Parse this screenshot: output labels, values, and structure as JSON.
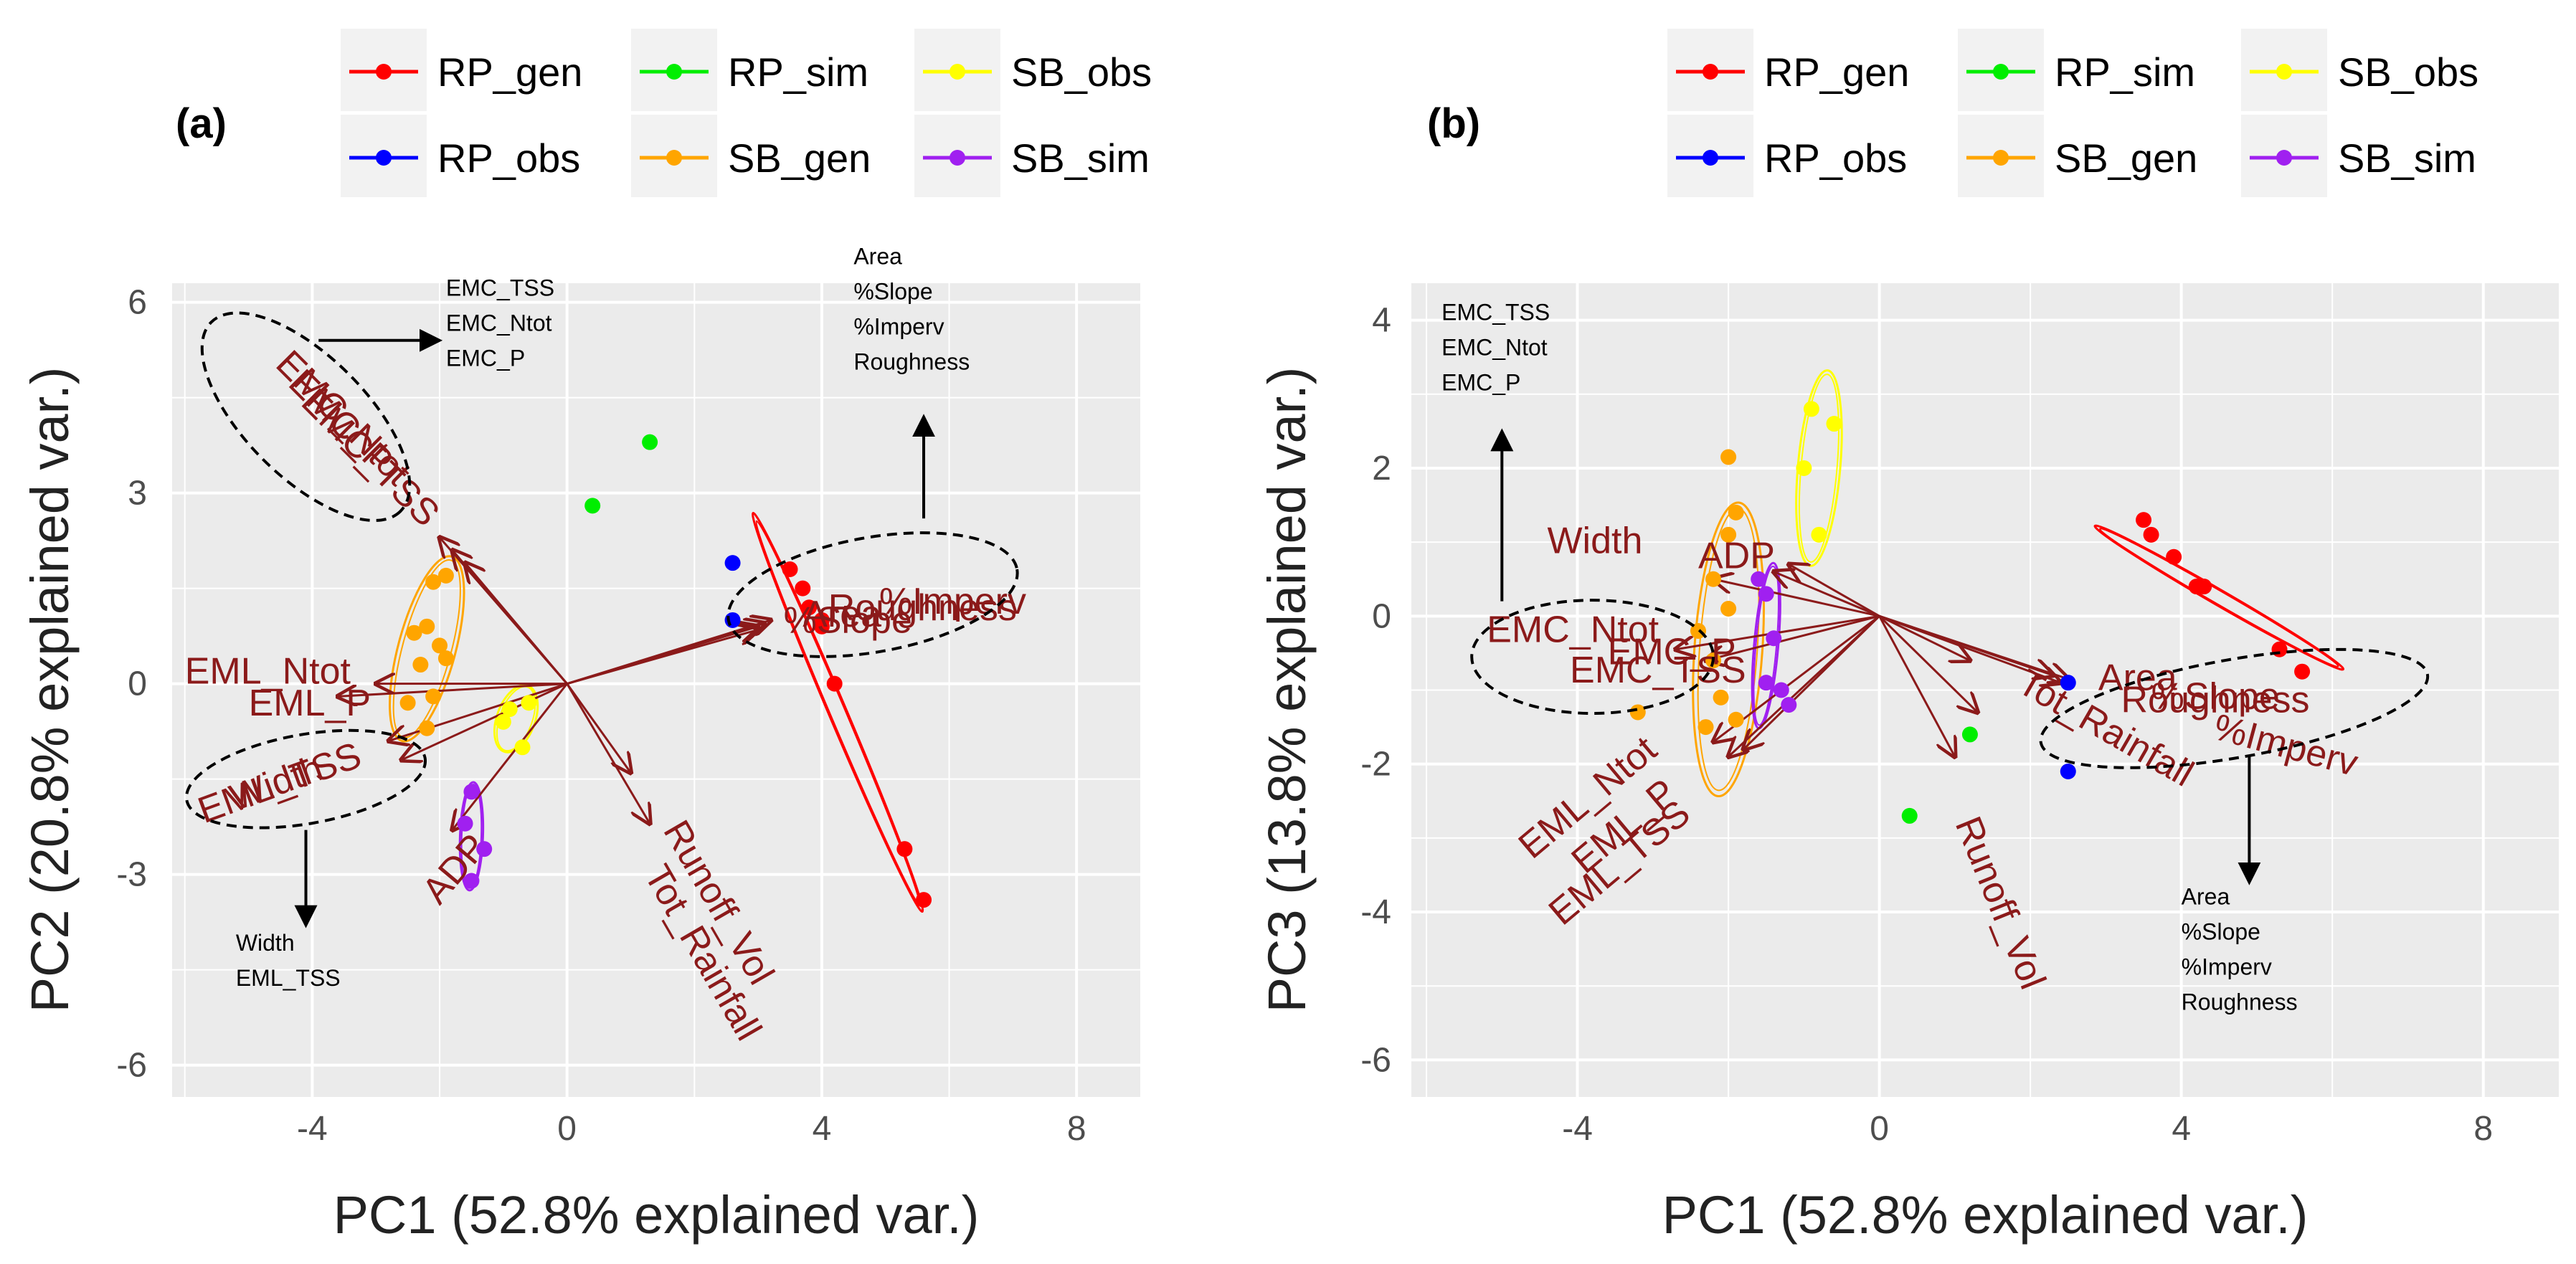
{
  "colors": {
    "RP_gen": "#ff0000",
    "RP_obs": "#0000ff",
    "RP_sim": "#00ee00",
    "SB_gen": "#ffa500",
    "SB_obs": "#ffff00",
    "SB_sim": "#a020f0",
    "loading": "#8b1a1a",
    "panel_bg": "#ebebeb",
    "grid": "#ffffff"
  },
  "chart_data": [
    {
      "type": "scatter",
      "panel_label": "(a)",
      "xlabel": "PC1 (52.8% explained var.)",
      "ylabel": "PC2 (20.8% explained var.)",
      "xlim": [
        -6.2,
        9.0
      ],
      "ylim": [
        -6.5,
        6.3
      ],
      "xticks": [
        -4,
        0,
        4,
        8
      ],
      "xtick_labels": [
        "-4",
        "0",
        "4",
        "8"
      ],
      "yticks": [
        -6,
        -3,
        0,
        3,
        6
      ],
      "ytick_labels": [
        "-6",
        "-3",
        "0",
        "3",
        "6"
      ],
      "legend": [
        {
          "key": "RP_gen",
          "label": "RP_gen"
        },
        {
          "key": "RP_sim",
          "label": "RP_sim"
        },
        {
          "key": "SB_obs",
          "label": "SB_obs"
        },
        {
          "key": "RP_obs",
          "label": "RP_obs"
        },
        {
          "key": "SB_gen",
          "label": "SB_gen"
        },
        {
          "key": "SB_sim",
          "label": "SB_sim"
        }
      ],
      "series": [
        {
          "name": "RP_gen",
          "points": [
            [
              3.5,
              1.8
            ],
            [
              3.7,
              1.5
            ],
            [
              3.8,
              1.2
            ],
            [
              4.0,
              0.9
            ],
            [
              4.2,
              0.0
            ],
            [
              5.3,
              -2.6
            ],
            [
              5.6,
              -3.4
            ],
            [
              4.0,
              1.0
            ]
          ]
        },
        {
          "name": "RP_obs",
          "points": [
            [
              2.6,
              1.9
            ],
            [
              2.6,
              1.0
            ]
          ]
        },
        {
          "name": "RP_sim",
          "points": [
            [
              1.3,
              3.8
            ],
            [
              0.4,
              2.8
            ]
          ]
        },
        {
          "name": "SB_gen",
          "points": [
            [
              -2.1,
              1.6
            ],
            [
              -1.9,
              1.7
            ],
            [
              -2.4,
              0.8
            ],
            [
              -2.2,
              0.9
            ],
            [
              -2.0,
              0.6
            ],
            [
              -2.3,
              0.3
            ],
            [
              -1.9,
              0.4
            ],
            [
              -2.5,
              -0.3
            ],
            [
              -2.1,
              -0.2
            ],
            [
              -2.2,
              -0.7
            ]
          ]
        },
        {
          "name": "SB_obs",
          "points": [
            [
              -0.9,
              -0.4
            ],
            [
              -0.6,
              -0.3
            ],
            [
              -0.7,
              -1.0
            ],
            [
              -1.0,
              -0.6
            ]
          ]
        },
        {
          "name": "SB_sim",
          "points": [
            [
              -1.5,
              -1.7
            ],
            [
              -1.6,
              -2.2
            ],
            [
              -1.3,
              -2.6
            ],
            [
              -1.5,
              -3.1
            ]
          ]
        }
      ],
      "ellipses": [
        {
          "series": "RP_gen",
          "cx": 4.25,
          "cy": -0.45,
          "rx": 3.4,
          "ry": 0.14,
          "angle": -67
        },
        {
          "series": "SB_gen",
          "cx": -2.2,
          "cy": 0.55,
          "rx": 1.5,
          "ry": 0.45,
          "angle": 75
        },
        {
          "series": "SB_obs",
          "cx": -0.8,
          "cy": -0.55,
          "rx": 0.55,
          "ry": 0.3,
          "angle": 70
        },
        {
          "series": "SB_sim",
          "cx": -1.5,
          "cy": -2.4,
          "rx": 0.85,
          "ry": 0.18,
          "angle": 88
        }
      ],
      "loadings": [
        {
          "to": [
            -2.0,
            2.3
          ]
        },
        {
          "to": [
            -1.8,
            2.1
          ]
        },
        {
          "to": [
            -1.6,
            1.9
          ]
        },
        {
          "to": [
            3.0,
            0.9
          ]
        },
        {
          "to": [
            3.1,
            0.95
          ]
        },
        {
          "to": [
            3.0,
            0.85
          ]
        },
        {
          "to": [
            3.2,
            1.0
          ]
        },
        {
          "to": [
            -3.6,
            -0.2
          ]
        },
        {
          "to": [
            -3.0,
            0.0
          ]
        },
        {
          "to": [
            -2.8,
            -0.9
          ]
        },
        {
          "to": [
            -2.6,
            -1.2
          ]
        },
        {
          "to": [
            -1.8,
            -2.3
          ]
        },
        {
          "to": [
            1.3,
            -2.2
          ]
        },
        {
          "to": [
            1.0,
            -1.4
          ]
        }
      ],
      "var_labels": [
        {
          "text": "EMC_Ntot",
          "x": -4.6,
          "y": 5.0,
          "rot": 45
        },
        {
          "text": "EMC_P",
          "x": -4.4,
          "y": 4.7,
          "rot": 45
        },
        {
          "text": "EMC_TSS",
          "x": -4.2,
          "y": 4.4,
          "rot": 45
        },
        {
          "text": "%Slope",
          "x": 3.4,
          "y": 0.8,
          "rot": 0
        },
        {
          "text": "%Imperv",
          "x": 4.9,
          "y": 1.1,
          "rot": 0
        },
        {
          "text": "Roughness",
          "x": 4.1,
          "y": 1.0,
          "rot": 0
        },
        {
          "text": "Area",
          "x": 3.7,
          "y": 0.9,
          "rot": 0
        },
        {
          "text": "EML_Ntot",
          "x": -6.0,
          "y": 0.0,
          "rot": 0
        },
        {
          "text": "EML_P",
          "x": -5.0,
          "y": -0.5,
          "rot": 0
        },
        {
          "text": "EML_TSS",
          "x": -5.7,
          "y": -2.2,
          "rot": -20
        },
        {
          "text": "Width",
          "x": -5.2,
          "y": -2.0,
          "rot": -20
        },
        {
          "text": "ADP",
          "x": -2.0,
          "y": -3.5,
          "rot": -50
        },
        {
          "text": "Runoff_Vol",
          "x": 1.5,
          "y": -2.3,
          "rot": 60
        },
        {
          "text": "Tot_Rainfall",
          "x": 1.2,
          "y": -3.0,
          "rot": 60
        }
      ],
      "dashed_ellipses": [
        {
          "cx": -4.1,
          "cy": 4.2,
          "rx": 2.1,
          "ry": 0.95,
          "angle": -45
        },
        {
          "cx": 4.8,
          "cy": 1.4,
          "rx": 2.3,
          "ry": 0.9,
          "angle": 10
        },
        {
          "cx": -4.1,
          "cy": -1.5,
          "rx": 1.9,
          "ry": 0.7,
          "angle": 10
        }
      ],
      "annotations": [
        {
          "lines": [
            "EMC_TSS",
            "EMC_Ntot",
            "EMC_P"
          ],
          "x": -1.9,
          "y": 6.1,
          "arrow": [
            [
              -3.9,
              5.4
            ],
            [
              -2.0,
              5.4
            ]
          ]
        },
        {
          "lines": [
            "Area",
            "%Slope",
            "%Imperv",
            "Roughness"
          ],
          "x": 4.5,
          "y": 6.6,
          "arrow": [
            [
              5.6,
              2.6
            ],
            [
              5.6,
              4.2
            ]
          ]
        },
        {
          "lines": [
            "Width",
            "EML_TSS"
          ],
          "x": -5.2,
          "y": -4.2,
          "arrow": [
            [
              -4.1,
              -2.3
            ],
            [
              -4.1,
              -3.8
            ]
          ]
        }
      ]
    },
    {
      "type": "scatter",
      "panel_label": "(b)",
      "xlabel": "PC1 (52.8% explained var.)",
      "ylabel": "PC3 (13.8% explained var.)",
      "xlim": [
        -6.2,
        9.0
      ],
      "ylim": [
        -6.5,
        4.5
      ],
      "xticks": [
        -4,
        0,
        4,
        8
      ],
      "xtick_labels": [
        "-4",
        "0",
        "4",
        "8"
      ],
      "yticks": [
        -6,
        -4,
        -2,
        0,
        2,
        4
      ],
      "ytick_labels": [
        "-6",
        "-4",
        "-2",
        "0",
        "2",
        "4"
      ],
      "legend": [
        {
          "key": "RP_gen",
          "label": "RP_gen"
        },
        {
          "key": "RP_sim",
          "label": "RP_sim"
        },
        {
          "key": "SB_obs",
          "label": "SB_obs"
        },
        {
          "key": "RP_obs",
          "label": "RP_obs"
        },
        {
          "key": "SB_gen",
          "label": "SB_gen"
        },
        {
          "key": "SB_sim",
          "label": "SB_sim"
        }
      ],
      "series": [
        {
          "name": "RP_gen",
          "points": [
            [
              3.5,
              1.3
            ],
            [
              3.6,
              1.1
            ],
            [
              3.9,
              0.8
            ],
            [
              4.2,
              0.4
            ],
            [
              4.3,
              0.4
            ],
            [
              5.3,
              -0.45
            ],
            [
              5.6,
              -0.75
            ]
          ]
        },
        {
          "name": "RP_obs",
          "points": [
            [
              2.5,
              -0.9
            ],
            [
              2.5,
              -2.1
            ]
          ]
        },
        {
          "name": "RP_sim",
          "points": [
            [
              1.2,
              -1.6
            ],
            [
              0.4,
              -2.7
            ]
          ]
        },
        {
          "name": "SB_gen",
          "points": [
            [
              -2.0,
              2.15
            ],
            [
              -1.9,
              1.4
            ],
            [
              -2.0,
              1.1
            ],
            [
              -2.2,
              0.5
            ],
            [
              -2.0,
              0.1
            ],
            [
              -2.4,
              -0.2
            ],
            [
              -2.2,
              -0.6
            ],
            [
              -2.1,
              -1.1
            ],
            [
              -2.3,
              -1.5
            ],
            [
              -3.2,
              -1.3
            ],
            [
              -1.9,
              -1.4
            ]
          ]
        },
        {
          "name": "SB_obs",
          "points": [
            [
              -0.9,
              2.8
            ],
            [
              -0.6,
              2.6
            ],
            [
              -1.0,
              2.0
            ],
            [
              -0.8,
              1.1
            ]
          ]
        },
        {
          "name": "SB_sim",
          "points": [
            [
              -1.6,
              0.5
            ],
            [
              -1.5,
              0.3
            ],
            [
              -1.4,
              -0.3
            ],
            [
              -1.5,
              -0.9
            ],
            [
              -1.3,
              -1.0
            ],
            [
              -1.2,
              -1.2
            ]
          ]
        }
      ],
      "ellipses": [
        {
          "series": "RP_gen",
          "cx": 4.5,
          "cy": 0.25,
          "rx": 1.9,
          "ry": 0.1,
          "angle": -30
        },
        {
          "series": "SB_gen",
          "cx": -2.0,
          "cy": -0.45,
          "rx": 1.95,
          "ry": 0.45,
          "angle": 86
        },
        {
          "series": "SB_obs",
          "cx": -0.8,
          "cy": 2.0,
          "rx": 1.3,
          "ry": 0.28,
          "angle": 85
        },
        {
          "series": "SB_sim",
          "cx": -1.5,
          "cy": -0.4,
          "rx": 1.1,
          "ry": 0.16,
          "angle": 85
        }
      ],
      "loadings": [
        {
          "to": [
            -1.4,
            0.6
          ]
        },
        {
          "to": [
            -1.2,
            0.7
          ]
        },
        {
          "to": [
            -2.2,
            0.5
          ]
        },
        {
          "to": [
            1.2,
            -0.6
          ]
        },
        {
          "to": [
            2.4,
            -0.9
          ]
        },
        {
          "to": [
            2.3,
            -0.8
          ]
        },
        {
          "to": [
            2.5,
            -0.85
          ]
        },
        {
          "to": [
            -2.7,
            -0.45
          ]
        },
        {
          "to": [
            -2.3,
            -0.6
          ]
        },
        {
          "to": [
            -2.2,
            -1.7
          ]
        },
        {
          "to": [
            -2.0,
            -1.9
          ]
        },
        {
          "to": [
            -1.8,
            -1.8
          ]
        },
        {
          "to": [
            1.0,
            -1.9
          ]
        },
        {
          "to": [
            1.3,
            -1.3
          ]
        }
      ],
      "var_labels": [
        {
          "text": "Width",
          "x": -4.4,
          "y": 0.85,
          "rot": 0
        },
        {
          "text": "ADP",
          "x": -2.4,
          "y": 0.65,
          "rot": 0
        },
        {
          "text": "EMC_Ntot",
          "x": -5.2,
          "y": -0.35,
          "rot": 0
        },
        {
          "text": "EMC_TSS",
          "x": -4.1,
          "y": -0.9,
          "rot": 0
        },
        {
          "text": "EMC_P",
          "x": -3.6,
          "y": -0.65,
          "rot": 0
        },
        {
          "text": "EML_Ntot",
          "x": -4.6,
          "y": -3.3,
          "rot": -40
        },
        {
          "text": "EML_P",
          "x": -3.9,
          "y": -3.5,
          "rot": -40
        },
        {
          "text": "EML_TSS",
          "x": -4.2,
          "y": -4.2,
          "rot": -40
        },
        {
          "text": "Area",
          "x": 2.9,
          "y": -1.0,
          "rot": 0
        },
        {
          "text": "%Slope",
          "x": 3.6,
          "y": -1.25,
          "rot": 0
        },
        {
          "text": "%Imperv",
          "x": 4.4,
          "y": -1.65,
          "rot": 15
        },
        {
          "text": "Roughness",
          "x": 3.2,
          "y": -1.3,
          "rot": 0
        },
        {
          "text": "Tot_Rainfall",
          "x": 1.8,
          "y": -1.0,
          "rot": 30
        },
        {
          "text": "Runoff_Vol",
          "x": 1.0,
          "y": -2.8,
          "rot": 68
        }
      ],
      "dashed_ellipses": [
        {
          "cx": -3.8,
          "cy": -0.55,
          "rx": 1.6,
          "ry": 0.75,
          "angle": 0
        },
        {
          "cx": 4.7,
          "cy": -1.25,
          "rx": 2.6,
          "ry": 0.65,
          "angle": 10
        }
      ],
      "annotations": [
        {
          "lines": [
            "EMC_TSS",
            "EMC_Ntot",
            "EMC_P"
          ],
          "x": -5.8,
          "y": 4.0,
          "arrow": [
            [
              -5.0,
              0.2
            ],
            [
              -5.0,
              2.5
            ]
          ]
        },
        {
          "lines": [
            "Area",
            "%Slope",
            "%Imperv",
            "Roughness"
          ],
          "x": 4.0,
          "y": -3.9,
          "arrow": [
            [
              4.9,
              -1.9
            ],
            [
              4.9,
              -3.6
            ]
          ]
        }
      ]
    }
  ]
}
